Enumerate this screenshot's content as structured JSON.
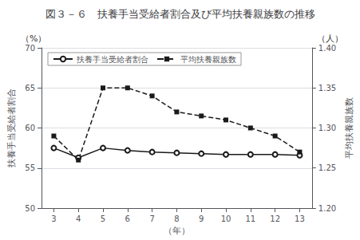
{
  "chart_data": {
    "type": "line",
    "title": "図３－６　扶養手当受給者割合及び平均扶養親族数の推移",
    "x": [
      3,
      4,
      5,
      6,
      7,
      8,
      9,
      10,
      11,
      12,
      13
    ],
    "xlim": [
      2.5,
      13.5
    ],
    "xticks": [
      3,
      4,
      5,
      6,
      7,
      8,
      9,
      10,
      11,
      12,
      13
    ],
    "xlabel": "（年）",
    "ylabel": "扶養手当受給者割合",
    "y_unit": "（%）",
    "y2label": "平均扶養親族数",
    "y2_unit": "（人）",
    "ylim": [
      50,
      70
    ],
    "yticks": [
      50,
      55,
      60,
      65,
      70
    ],
    "y2lim": [
      1.2,
      1.4
    ],
    "y2ticks": [
      {
        "value": 1.2,
        "label": "1.20"
      },
      1.25,
      {
        "value": 1.3,
        "label": "1.30"
      },
      1.35,
      {
        "value": 1.4,
        "label": "1.40"
      }
    ],
    "grid": true,
    "legend": "upper left",
    "series": [
      {
        "name": "扶養手当受給者割合",
        "color": "#1a1a1a",
        "marker": "circle",
        "line_style": "solid",
        "values": [
          57.5,
          56.3,
          57.5,
          57.2,
          57.0,
          56.9,
          56.8,
          56.7,
          56.7,
          56.7,
          56.6
        ]
      },
      {
        "name": "平均扶養親族数",
        "color": "#1a1a1a",
        "marker": "square",
        "line_style": "dashed",
        "axis": "y2",
        "values": [
          1.29,
          1.26,
          1.35,
          1.35,
          1.34,
          1.32,
          1.315,
          1.31,
          1.3,
          1.29,
          1.27
        ]
      }
    ]
  }
}
